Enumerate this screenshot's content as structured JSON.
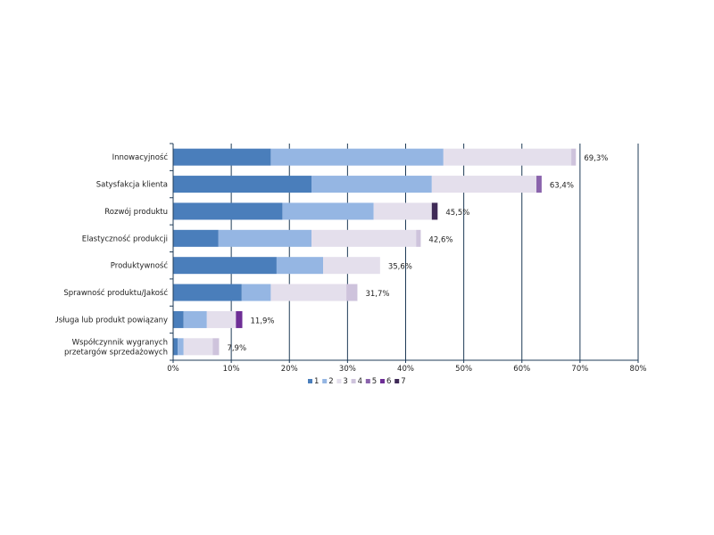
{
  "chart_data": {
    "type": "bar",
    "orientation": "horizontal",
    "stacked": true,
    "categories": [
      "Innowacyjność",
      "Satysfakcja klienta",
      "Rozwój produktu",
      "Elastyczność produkcji",
      "Produktywność",
      "Sprawność produktu/Jakość",
      "Usługa lub produkt powiązany",
      "Współczynnik wygranych przetargów sprzedażowych"
    ],
    "series": [
      {
        "name": "1",
        "color": "#4a7ebb",
        "values": [
          16.8,
          23.8,
          18.8,
          7.8,
          17.8,
          11.8,
          1.8,
          0.8
        ]
      },
      {
        "name": "2",
        "color": "#95b6e3",
        "values": [
          29.7,
          20.7,
          15.7,
          16.0,
          8.0,
          5.0,
          4.0,
          1.0
        ]
      },
      {
        "name": "3",
        "color": "#e4dfec",
        "values": [
          22.0,
          18.0,
          10.0,
          18.0,
          9.8,
          13.0,
          5.0,
          5.0
        ]
      },
      {
        "name": "4",
        "color": "#cec3dc",
        "values": [
          0.8,
          0.0,
          0.0,
          0.8,
          0.0,
          1.9,
          0.0,
          1.1
        ]
      },
      {
        "name": "5",
        "color": "#8a63ac",
        "values": [
          0.0,
          0.9,
          0.0,
          0.0,
          0.0,
          0.0,
          0.0,
          0.0
        ]
      },
      {
        "name": "6",
        "color": "#6e2e96",
        "values": [
          0.0,
          0.0,
          0.0,
          0.0,
          0.0,
          0.0,
          1.1,
          0.0
        ]
      },
      {
        "name": "7",
        "color": "#3f2a57",
        "values": [
          0.0,
          0.0,
          1.0,
          0.0,
          0.0,
          0.0,
          0.0,
          0.0
        ]
      }
    ],
    "totals": [
      "69,3%",
      "63,4%",
      "45,5%",
      "42,6%",
      "35,6%",
      "31,7%",
      "11,9%",
      "7,9%"
    ],
    "total_values": [
      69.3,
      63.4,
      45.5,
      42.6,
      35.6,
      31.7,
      11.9,
      7.9
    ],
    "xlim": [
      0,
      80
    ],
    "xticks": [
      0,
      10,
      20,
      30,
      40,
      50,
      60,
      70,
      80
    ],
    "xtick_labels": [
      "0%",
      "10%",
      "20%",
      "30%",
      "40%",
      "50%",
      "60%",
      "70%",
      "80%"
    ],
    "grid": "vertical",
    "legend_position": "bottom"
  }
}
